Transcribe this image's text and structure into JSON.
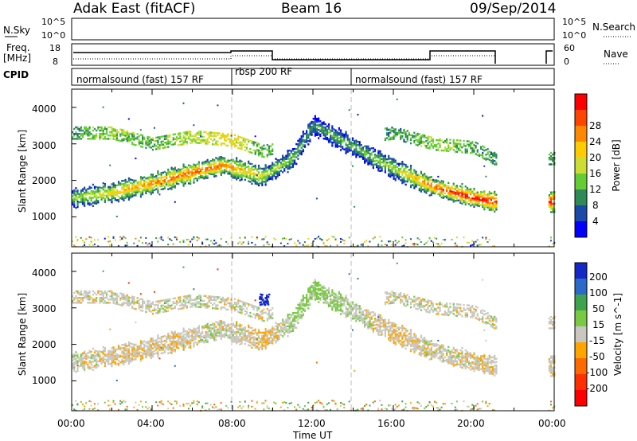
{
  "header": {
    "radar": "Adak East (fitACF)",
    "beam": "Beam 16",
    "date": "09/Sep/2014"
  },
  "strip_labels": {
    "nsky": "N.Sky",
    "nsky_top": "10^5",
    "nsky_bottom": "10^0",
    "nsearch": "N.Search",
    "nsearch_top": "10^5",
    "nsearch_bottom": "10^0",
    "freq_line1": "Freq.",
    "freq_line2": "[MHz]",
    "freq_top": "18",
    "freq_bottom": "8",
    "nave": "Nave",
    "nave_top": "60",
    "nave_bottom": "0",
    "cpid": "CPID"
  },
  "cpid_segments": [
    {
      "label": "normalsound (fast) 157 RF",
      "start_h": 0.0
    },
    {
      "label": "rbsp 200 RF",
      "start_h": 8.0
    },
    {
      "label": "normalsound (fast) 157 RF",
      "start_h": 14.0
    }
  ],
  "power_panel": {
    "ylabel": "Slant Range [km]",
    "yticks": [
      "1000",
      "2000",
      "3000",
      "4000"
    ],
    "colorbar_label": "Power [dB]",
    "colorbar_ticks": [
      "4",
      "8",
      "12",
      "16",
      "20",
      "24",
      "28"
    ],
    "colors": [
      "#0000ff",
      "#1a4aa8",
      "#2e8b57",
      "#66cc33",
      "#ccdd33",
      "#ffcc00",
      "#ff8800",
      "#ff4400",
      "#ff0000"
    ]
  },
  "velocity_panel": {
    "ylabel": "Slant Range [km]",
    "yticks": [
      "1000",
      "2000",
      "3000",
      "4000"
    ],
    "colorbar_label": "Velocity [m s^-1]",
    "colorbar_ticks": [
      "200",
      "100",
      "50",
      "15",
      "-15",
      "-50",
      "-100",
      "-200"
    ],
    "colors": [
      "#1428c8",
      "#2a6ac8",
      "#3fa34d",
      "#7ac943",
      "#c8c8c0",
      "#ffa500",
      "#ff6a00",
      "#ff3000",
      "#ff0000"
    ]
  },
  "xaxis": {
    "label": "Time UT",
    "ticks": [
      "00:00",
      "04:00",
      "08:00",
      "12:00",
      "16:00",
      "20:00",
      "00:00"
    ]
  },
  "chart_data": {
    "type": "heatmap",
    "x_range_hours": [
      0,
      24
    ],
    "y_range_km": [
      180,
      4500
    ],
    "power_echo_band": {
      "time_h": [
        0.0,
        2.0,
        4.0,
        6.0,
        7.5,
        9.5,
        11.0,
        12.0,
        16.0,
        18.0,
        20.0,
        21.0
      ],
      "range_km": [
        1500,
        1650,
        1900,
        2200,
        2400,
        2100,
        2600,
        3500,
        2300,
        1800,
        1500,
        1400
      ],
      "power_db": [
        14,
        18,
        22,
        24,
        22,
        16,
        12,
        10,
        14,
        24,
        28,
        26
      ]
    },
    "upper_echo_band": {
      "time_h": [
        0.0,
        2.0,
        4.0,
        6.0,
        8.0,
        9.5,
        16.0,
        18.0,
        20.0,
        21.0
      ],
      "range_km": [
        3300,
        3300,
        3000,
        3200,
        3100,
        2800,
        3300,
        3000,
        2900,
        2600
      ],
      "power_db": [
        10,
        14,
        12,
        16,
        18,
        12,
        10,
        14,
        12,
        10
      ]
    },
    "velocity_echo_band": {
      "time_h": [
        0.0,
        4.0,
        8.0,
        9.5,
        11.5,
        16.0,
        18.0,
        21.0
      ],
      "range_km": [
        1500,
        1900,
        2300,
        2100,
        2900,
        2000,
        1700,
        1400
      ],
      "velocity_ms": [
        0,
        -10,
        5,
        -20,
        30,
        -10,
        0,
        -5
      ]
    }
  }
}
